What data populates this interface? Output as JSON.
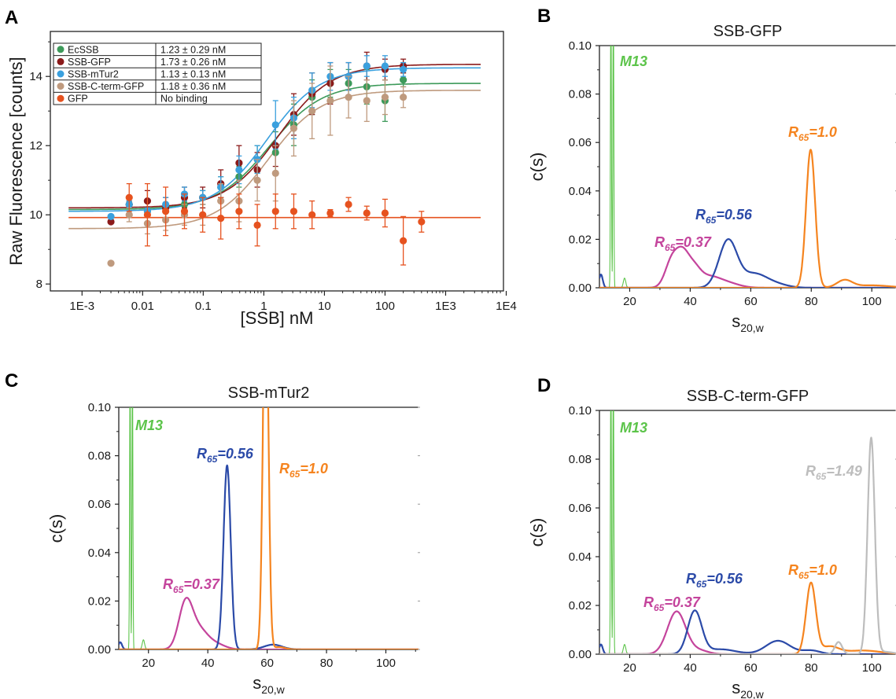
{
  "colors": {
    "EcSSB": "#3d9a5a",
    "SSB-GFP": "#8b1a1a",
    "SSB-mTur2": "#3aa0de",
    "SSB-C-term-GFP": "#bf9a7e",
    "GFP": "#e6521f",
    "magenta": "#c4449c",
    "blue": "#2b4aa8",
    "orange": "#f5841f",
    "gray": "#bdbdbd",
    "green": "#5cc44a"
  },
  "chart_data": [
    {
      "panel": "A",
      "type": "scatter",
      "xlabel": "[SSB] nM",
      "ylabel": "Raw Fluorescence [counts]",
      "xscale": "log",
      "xlim": [
        0.0003,
        9000
      ],
      "ylim": [
        7.8,
        15.3
      ],
      "xticks": [
        "1E-3",
        "0.01",
        "0.1",
        "1",
        "10",
        "100",
        "1E3",
        "1E4"
      ],
      "yticks": [
        "8",
        "10",
        "12",
        "14"
      ],
      "legend_position": "top-left",
      "x": [
        0.003,
        0.006,
        0.012,
        0.024,
        0.049,
        0.098,
        0.195,
        0.39,
        0.78,
        1.56,
        3.12,
        6.25,
        12.5,
        25,
        50,
        100,
        200,
        400
      ],
      "series": [
        {
          "name": "EcSSB",
          "kd": "1.23 ± 0.29 nM",
          "fit": {
            "bottom": 10.15,
            "top": 13.8,
            "kd": 1.23
          },
          "y": [
            null,
            10.3,
            10.1,
            10.2,
            10.3,
            10.5,
            10.8,
            11.1,
            11.6,
            11.8,
            12.6,
            13.4,
            13.8,
            13.8,
            13.7,
            13.3,
            13.9,
            null
          ],
          "err": [
            0,
            0.1,
            0.1,
            0.1,
            0.1,
            0.2,
            0.3,
            0.3,
            0.4,
            0.6,
            0.6,
            0.5,
            0.4,
            0.4,
            0.5,
            0.6,
            0.2,
            0
          ]
        },
        {
          "name": "SSB-GFP",
          "kd": "1.73 ± 0.26 nM",
          "fit": {
            "bottom": 10.2,
            "top": 14.35,
            "kd": 1.73
          },
          "y": [
            9.8,
            10.3,
            10.4,
            10.2,
            10.5,
            10.5,
            10.9,
            11.5,
            11.3,
            12.0,
            12.9,
            13.5,
            13.8,
            14.0,
            14.3,
            14.2,
            14.3,
            null
          ],
          "err": [
            0,
            0.1,
            0.3,
            0.3,
            0.3,
            0.3,
            0.4,
            0.5,
            0.5,
            0.6,
            0.6,
            0.6,
            0.6,
            0.4,
            0.4,
            0.3,
            0.2,
            0
          ]
        },
        {
          "name": "SSB-mTur2",
          "kd": "1.13 ± 0.13 nM",
          "fit": {
            "bottom": 10.1,
            "top": 14.25,
            "kd": 1.13
          },
          "y": [
            9.95,
            10.3,
            10.1,
            10.3,
            10.6,
            10.5,
            10.8,
            11.3,
            11.6,
            12.6,
            12.8,
            13.6,
            14.0,
            14.0,
            14.3,
            14.3,
            14.2,
            null
          ],
          "err": [
            0,
            0.1,
            0.1,
            0.2,
            0.2,
            0.2,
            0.3,
            0.4,
            0.4,
            0.7,
            0.6,
            0.5,
            0.4,
            0.4,
            0.3,
            0.3,
            0.2,
            0
          ]
        },
        {
          "name": "SSB-C-term-GFP",
          "kd": "1.18 ± 0.36 nM",
          "fit": {
            "bottom": 9.6,
            "top": 13.6,
            "kd": 1.18
          },
          "y": [
            8.6,
            10.0,
            9.75,
            9.85,
            10.0,
            10.0,
            10.4,
            10.4,
            11.0,
            11.2,
            12.5,
            13.0,
            13.3,
            13.4,
            13.3,
            13.4,
            13.4,
            null
          ],
          "err": [
            0,
            0.2,
            0.3,
            0.3,
            0.3,
            0.3,
            0.5,
            0.6,
            0.6,
            0.8,
            0.8,
            0.8,
            1.0,
            0.6,
            0.6,
            0.5,
            0.3,
            0
          ]
        },
        {
          "name": "GFP",
          "kd": "No binding",
          "fit": {
            "flat": 9.92
          },
          "y": [
            null,
            10.5,
            10.0,
            10.1,
            10.1,
            10.0,
            9.9,
            10.1,
            9.7,
            10.1,
            10.1,
            10.0,
            10.05,
            10.3,
            10.05,
            10.05,
            9.25,
            9.8
          ],
          "err": [
            0,
            0.4,
            0.9,
            0.7,
            0.5,
            0.5,
            0.6,
            0.5,
            0.6,
            0.5,
            0.5,
            0.4,
            0.1,
            0.2,
            0.2,
            0.4,
            0.7,
            0.3
          ]
        }
      ]
    },
    {
      "panel": "B",
      "type": "line",
      "title": "SSB-GFP",
      "xlabel": "s",
      "xlabel_sub": "20,w",
      "ylabel": "c(s)",
      "xlim": [
        10,
        108
      ],
      "ylim": [
        0,
        0.1
      ],
      "xticks": [
        "20",
        "40",
        "60",
        "80",
        "100"
      ],
      "yticks": [
        "0.00",
        "0.02",
        "0.04",
        "0.06",
        "0.08",
        "0.10"
      ],
      "annotations": [
        {
          "text": "M13",
          "color": "green"
        },
        {
          "text_main": "R",
          "text_sub": "65",
          "text_tail": "=0.37",
          "color": "magenta"
        },
        {
          "text_main": "R",
          "text_sub": "65",
          "text_tail": "=0.56",
          "color": "blue"
        },
        {
          "text_main": "R",
          "text_sub": "65",
          "text_tail": "=1.0",
          "color": "orange"
        }
      ],
      "series": [
        {
          "color": "green",
          "peaks": [
            [
              13.8,
              0.12,
              0.15
            ],
            [
              14.6,
              0.12,
              0.15
            ],
            [
              18.3,
              0.004,
              0.4
            ]
          ],
          "base": 0
        },
        {
          "color": "magenta",
          "peaks": [
            [
              34,
              0.0115,
              2.2
            ],
            [
              37.5,
              0.011,
              2.0
            ],
            [
              41,
              0.0075,
              2.3
            ],
            [
              46,
              0.004,
              3.5
            ],
            [
              52,
              0.002,
              4
            ]
          ],
          "base": 0
        },
        {
          "color": "blue",
          "peaks": [
            [
              10.5,
              0.0055,
              0.6
            ],
            [
              52.5,
              0.0195,
              3.0
            ],
            [
              61,
              0.0055,
              4.0
            ],
            [
              68,
              0.0015,
              4
            ]
          ],
          "base": 0
        },
        {
          "color": "orange",
          "peaks": [
            [
              79.8,
              0.057,
              1.5
            ],
            [
              91,
              0.003,
              2.5
            ],
            [
              100,
              0.001,
              6
            ]
          ],
          "base": 0
        }
      ]
    },
    {
      "panel": "C",
      "type": "line",
      "title": "SSB-mTur2",
      "xlabel": "s",
      "xlabel_sub": "20,w",
      "ylabel": "c(s)",
      "xlim": [
        10,
        111
      ],
      "ylim": [
        0,
        0.1
      ],
      "xticks": [
        "20",
        "40",
        "60",
        "80",
        "100"
      ],
      "yticks": [
        "0.00",
        "0.02",
        "0.04",
        "0.06",
        "0.08",
        "0.10"
      ],
      "annotations": [
        {
          "text": "M13",
          "color": "green"
        },
        {
          "text_main": "R",
          "text_sub": "65",
          "text_tail": "=0.37",
          "color": "magenta"
        },
        {
          "text_main": "R",
          "text_sub": "65",
          "text_tail": "=0.56",
          "color": "blue"
        },
        {
          "text_main": "R",
          "text_sub": "65",
          "text_tail": "=1.0",
          "color": "orange"
        }
      ],
      "series": [
        {
          "color": "green",
          "peaks": [
            [
              13.8,
              0.12,
              0.15
            ],
            [
              14.6,
              0.12,
              0.15
            ],
            [
              18.3,
              0.004,
              0.4
            ]
          ],
          "base": 0
        },
        {
          "color": "magenta",
          "peaks": [
            [
              32.5,
              0.0185,
              2.3
            ],
            [
              37,
              0.008,
              3.0
            ],
            [
              43,
              0.002,
              3
            ]
          ],
          "base": 0
        },
        {
          "color": "blue",
          "peaks": [
            [
              10.5,
              0.003,
              0.6
            ],
            [
              46.5,
              0.076,
              1.2
            ],
            [
              62,
              0.002,
              3
            ]
          ],
          "base": 0
        },
        {
          "color": "orange",
          "peaks": [
            [
              59.5,
              0.16,
              0.9
            ],
            [
              64,
              0.001,
              2
            ]
          ],
          "base": 0
        }
      ]
    },
    {
      "panel": "D",
      "type": "line",
      "title": "SSB-C-term-GFP",
      "xlabel": "s",
      "xlabel_sub": "20,w",
      "ylabel": "c(s)",
      "xlim": [
        10,
        108
      ],
      "ylim": [
        0,
        0.1
      ],
      "xticks": [
        "20",
        "40",
        "60",
        "80",
        "100"
      ],
      "yticks": [
        "0.00",
        "0.02",
        "0.04",
        "0.06",
        "0.08",
        "0.10"
      ],
      "annotations": [
        {
          "text": "M13",
          "color": "green"
        },
        {
          "text_main": "R",
          "text_sub": "65",
          "text_tail": "=0.37",
          "color": "magenta"
        },
        {
          "text_main": "R",
          "text_sub": "65",
          "text_tail": "=0.56",
          "color": "blue"
        },
        {
          "text_main": "R",
          "text_sub": "65",
          "text_tail": "=1.0",
          "color": "orange"
        },
        {
          "text_main": "R",
          "text_sub": "65",
          "text_tail": "=1.49",
          "color": "gray"
        }
      ],
      "series": [
        {
          "color": "green",
          "peaks": [
            [
              13.8,
              0.12,
              0.15
            ],
            [
              14.6,
              0.12,
              0.15
            ],
            [
              18.3,
              0.004,
              0.4
            ]
          ],
          "base": 0
        },
        {
          "color": "magenta",
          "peaks": [
            [
              35.5,
              0.0175,
              3.0
            ],
            [
              43,
              0.0015,
              3
            ]
          ],
          "base": 0
        },
        {
          "color": "blue",
          "peaks": [
            [
              10.5,
              0.004,
              0.6
            ],
            [
              41.5,
              0.0175,
              2.3
            ],
            [
              50,
              0.002,
              5
            ],
            [
              69,
              0.0055,
              4.0
            ],
            [
              80,
              0.0015,
              3
            ]
          ],
          "base": 0
        },
        {
          "color": "orange",
          "peaks": [
            [
              79.9,
              0.029,
              1.6
            ],
            [
              86,
              0.003,
              3
            ],
            [
              97,
              0.0015,
              6
            ]
          ],
          "base": 0
        },
        {
          "color": "gray",
          "peaks": [
            [
              89,
              0.005,
              1.2
            ],
            [
              99.8,
              0.0885,
              1.2
            ],
            [
              104,
              0.001,
              3
            ]
          ],
          "base": 0
        }
      ]
    }
  ]
}
